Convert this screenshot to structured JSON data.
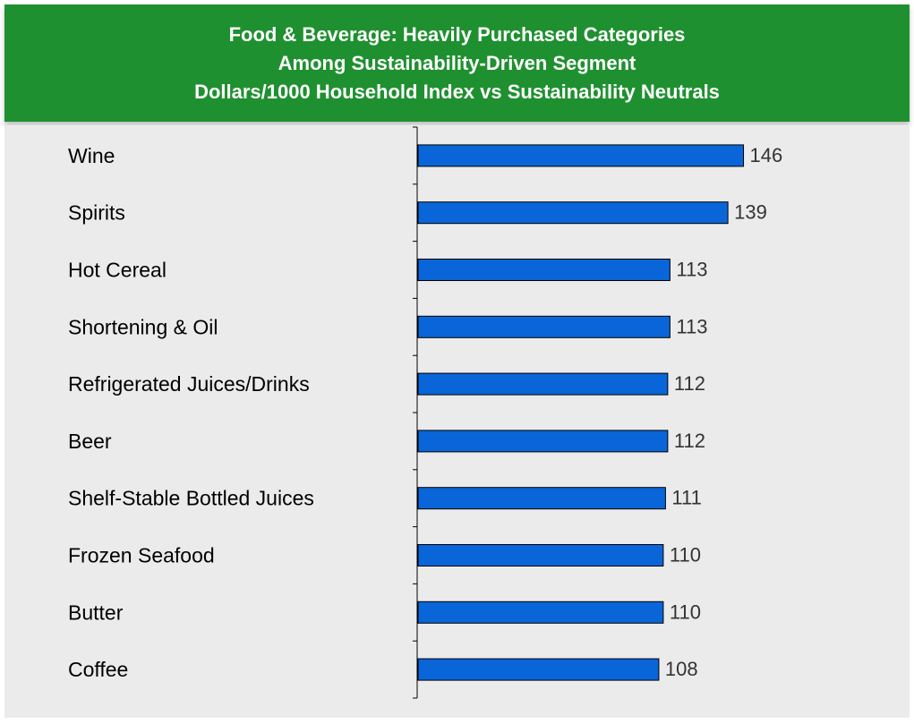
{
  "title": {
    "line1": "Food & Beverage: Heavily Purchased Categories",
    "line2": "Among Sustainability-Driven Segment",
    "line3": "Dollars/1000 Household Index vs Sustainability Neutrals"
  },
  "colors": {
    "header_bg": "#1f9030",
    "bar_fill": "#0a66d8",
    "panel_bg": "#ebebeb"
  },
  "chart_data": {
    "type": "bar",
    "orientation": "horizontal",
    "title": "Food & Beverage: Heavily Purchased Categories Among Sustainability-Driven Segment Dollars/1000 Household Index vs Sustainability Neutrals",
    "categories": [
      "Wine",
      "Spirits",
      "Hot Cereal",
      "Shortening & Oil",
      "Refrigerated Juices/Drinks",
      "Beer",
      "Shelf-Stable Bottled Juices",
      "Frozen Seafood",
      "Butter",
      "Coffee"
    ],
    "values": [
      146,
      139,
      113,
      113,
      112,
      112,
      111,
      110,
      110,
      108
    ],
    "data_labels": [
      "146",
      "139",
      "113",
      "113",
      "112",
      "112",
      "111",
      "110",
      "110",
      "108"
    ],
    "xlim": [
      0,
      160
    ],
    "grid": false,
    "legend": "none"
  }
}
